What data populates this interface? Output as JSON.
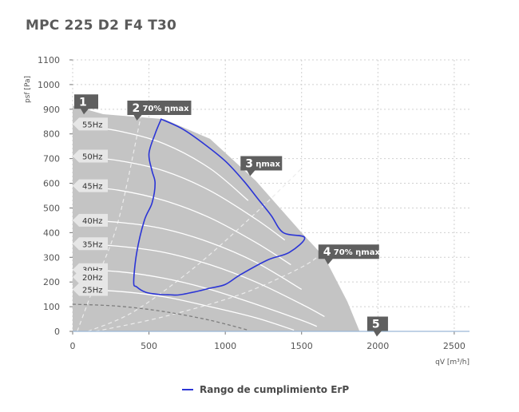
{
  "chart_data": {
    "type": "area",
    "title": "MPC 225 D2 F4 T30",
    "xlabel": "qV [m³/h]",
    "ylabel": "psf [Pa]",
    "xlim": [
      0,
      2600
    ],
    "ylim": [
      0,
      1100
    ],
    "x_ticks": [
      "0",
      "500",
      "1000",
      "1500",
      "2000",
      "2500"
    ],
    "y_ticks": [
      "0",
      "100",
      "200",
      "300",
      "400",
      "500",
      "600",
      "700",
      "800",
      "900",
      "1000",
      "1100"
    ],
    "grid": true,
    "colors": {
      "envelope": "#c4c4c4",
      "erp": "#2b35d6",
      "freq_lines": "#ffffff",
      "markers": "#5f5f5f"
    },
    "envelope": [
      [
        0,
        920
      ],
      [
        0,
        915
      ],
      [
        200,
        880
      ],
      [
        600,
        860
      ],
      [
        900,
        780
      ],
      [
        1200,
        610
      ],
      [
        1500,
        400
      ],
      [
        1650,
        300
      ],
      [
        1800,
        120
      ],
      [
        1880,
        0
      ],
      [
        0,
        0
      ]
    ],
    "frequency_curves": [
      {
        "label": "55Hz",
        "points": [
          [
            0,
            840
          ],
          [
            300,
            812
          ],
          [
            600,
            760
          ],
          [
            900,
            660
          ],
          [
            1150,
            530
          ]
        ]
      },
      {
        "label": "50Hz",
        "points": [
          [
            0,
            710
          ],
          [
            300,
            692
          ],
          [
            600,
            650
          ],
          [
            900,
            570
          ],
          [
            1200,
            455
          ],
          [
            1390,
            370
          ]
        ]
      },
      {
        "label": "45Hz",
        "points": [
          [
            0,
            590
          ],
          [
            300,
            572
          ],
          [
            600,
            530
          ],
          [
            900,
            460
          ],
          [
            1200,
            360
          ],
          [
            1430,
            270
          ]
        ]
      },
      {
        "label": "40Hz",
        "points": [
          [
            0,
            450
          ],
          [
            300,
            442
          ],
          [
            600,
            415
          ],
          [
            900,
            360
          ],
          [
            1200,
            280
          ],
          [
            1500,
            170
          ]
        ]
      },
      {
        "label": "35Hz",
        "points": [
          [
            0,
            355
          ],
          [
            300,
            345
          ],
          [
            600,
            320
          ],
          [
            900,
            270
          ],
          [
            1200,
            200
          ],
          [
            1500,
            110
          ],
          [
            1650,
            60
          ]
        ]
      },
      {
        "label": "30Hz",
        "points": [
          [
            0,
            250
          ],
          [
            300,
            242
          ],
          [
            600,
            215
          ],
          [
            900,
            170
          ],
          [
            1200,
            110
          ],
          [
            1500,
            45
          ],
          [
            1600,
            20
          ]
        ]
      },
      {
        "label": "25Hz",
        "points": [
          [
            0,
            170
          ],
          [
            300,
            162
          ],
          [
            600,
            140
          ],
          [
            900,
            100
          ],
          [
            1200,
            55
          ],
          [
            1450,
            5
          ]
        ]
      },
      {
        "label": "20Hz",
        "points": [
          [
            0,
            110
          ],
          [
            300,
            102
          ],
          [
            600,
            80
          ],
          [
            900,
            45
          ],
          [
            1150,
            5
          ]
        ]
      }
    ],
    "efficiency_lines": [
      {
        "label": "1",
        "points": [
          [
            0,
            0
          ],
          [
            0,
            920
          ]
        ]
      },
      {
        "label": "2 70% ηmax",
        "points": [
          [
            30,
            0
          ],
          [
            150,
            200
          ],
          [
            300,
            450
          ],
          [
            450,
            880
          ]
        ]
      },
      {
        "label": "3 ηmax",
        "points": [
          [
            100,
            0
          ],
          [
            400,
            80
          ],
          [
            800,
            260
          ],
          [
            1200,
            480
          ],
          [
            1500,
            660
          ]
        ]
      },
      {
        "label": "4 70% ηmax",
        "points": [
          [
            150,
            0
          ],
          [
            600,
            60
          ],
          [
            1100,
            150
          ],
          [
            1500,
            260
          ],
          [
            1660,
            330
          ]
        ]
      },
      {
        "label": "5",
        "points": [
          [
            200,
            0
          ],
          [
            1200,
            0
          ],
          [
            2000,
            0
          ]
        ]
      }
    ],
    "erp_range": [
      [
        580,
        860
      ],
      [
        720,
        820
      ],
      [
        860,
        760
      ],
      [
        1000,
        690
      ],
      [
        1120,
        610
      ],
      [
        1210,
        540
      ],
      [
        1300,
        470
      ],
      [
        1380,
        400
      ],
      [
        1520,
        380
      ],
      [
        1420,
        320
      ],
      [
        1280,
        290
      ],
      [
        1100,
        230
      ],
      [
        1000,
        190
      ],
      [
        900,
        175
      ],
      [
        800,
        160
      ],
      [
        700,
        148
      ],
      [
        640,
        148
      ],
      [
        560,
        150
      ],
      [
        480,
        158
      ],
      [
        420,
        180
      ],
      [
        400,
        200
      ],
      [
        420,
        320
      ],
      [
        470,
        450
      ],
      [
        520,
        520
      ],
      [
        540,
        600
      ],
      [
        520,
        650
      ],
      [
        500,
        720
      ],
      [
        540,
        800
      ],
      [
        580,
        860
      ]
    ],
    "markers": [
      {
        "id": "1",
        "text": ""
      },
      {
        "id": "2",
        "text": "70% ηmax"
      },
      {
        "id": "3",
        "text": "ηmax"
      },
      {
        "id": "4",
        "text": "70% ηmax"
      },
      {
        "id": "5",
        "text": ""
      }
    ],
    "legend": {
      "position": "bottom",
      "label": "Rango de cumplimiento ErP"
    }
  }
}
